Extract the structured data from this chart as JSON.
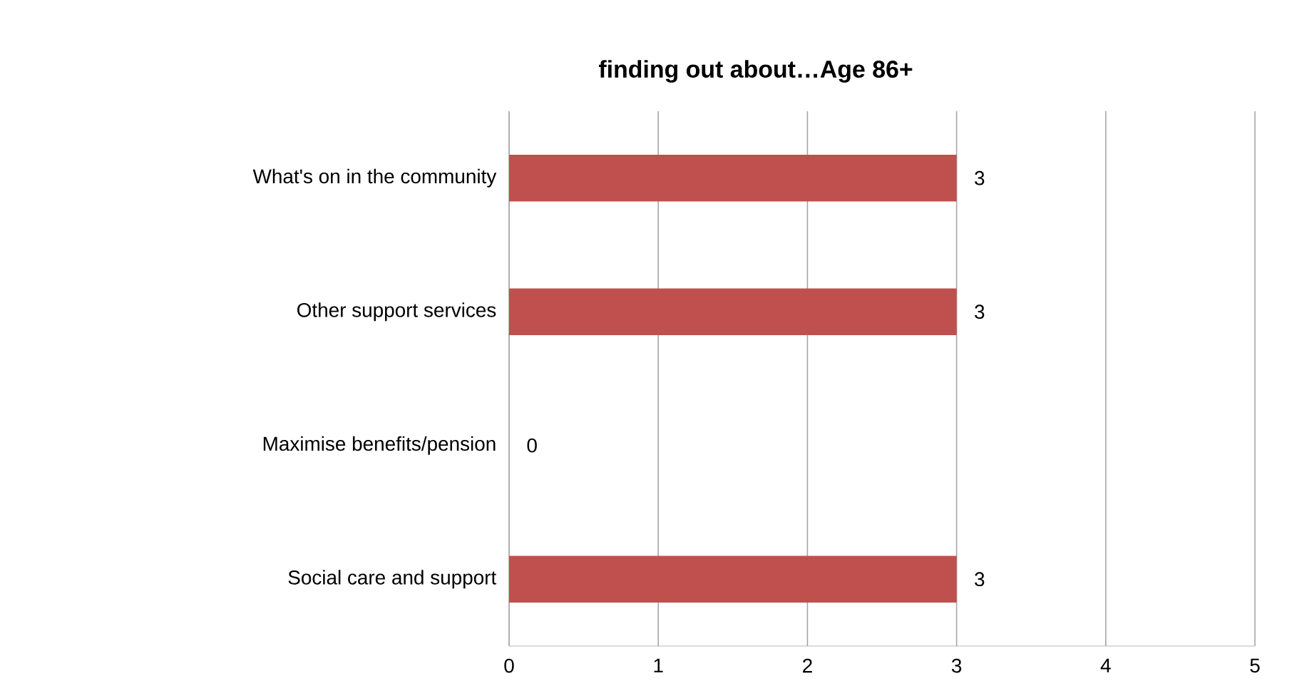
{
  "chart_data": {
    "type": "bar",
    "orientation": "horizontal",
    "title": "finding out about…Age 86+",
    "categories": [
      "What's on in the community",
      "Other support services",
      "Maximise benefits/pension",
      "Social care and support"
    ],
    "values": [
      3,
      3,
      0,
      3
    ],
    "color": "#c0504d",
    "xlim": [
      0,
      5
    ],
    "xticks": [
      0,
      1,
      2,
      3,
      4,
      5
    ],
    "grid": "x",
    "data_labels": true
  }
}
